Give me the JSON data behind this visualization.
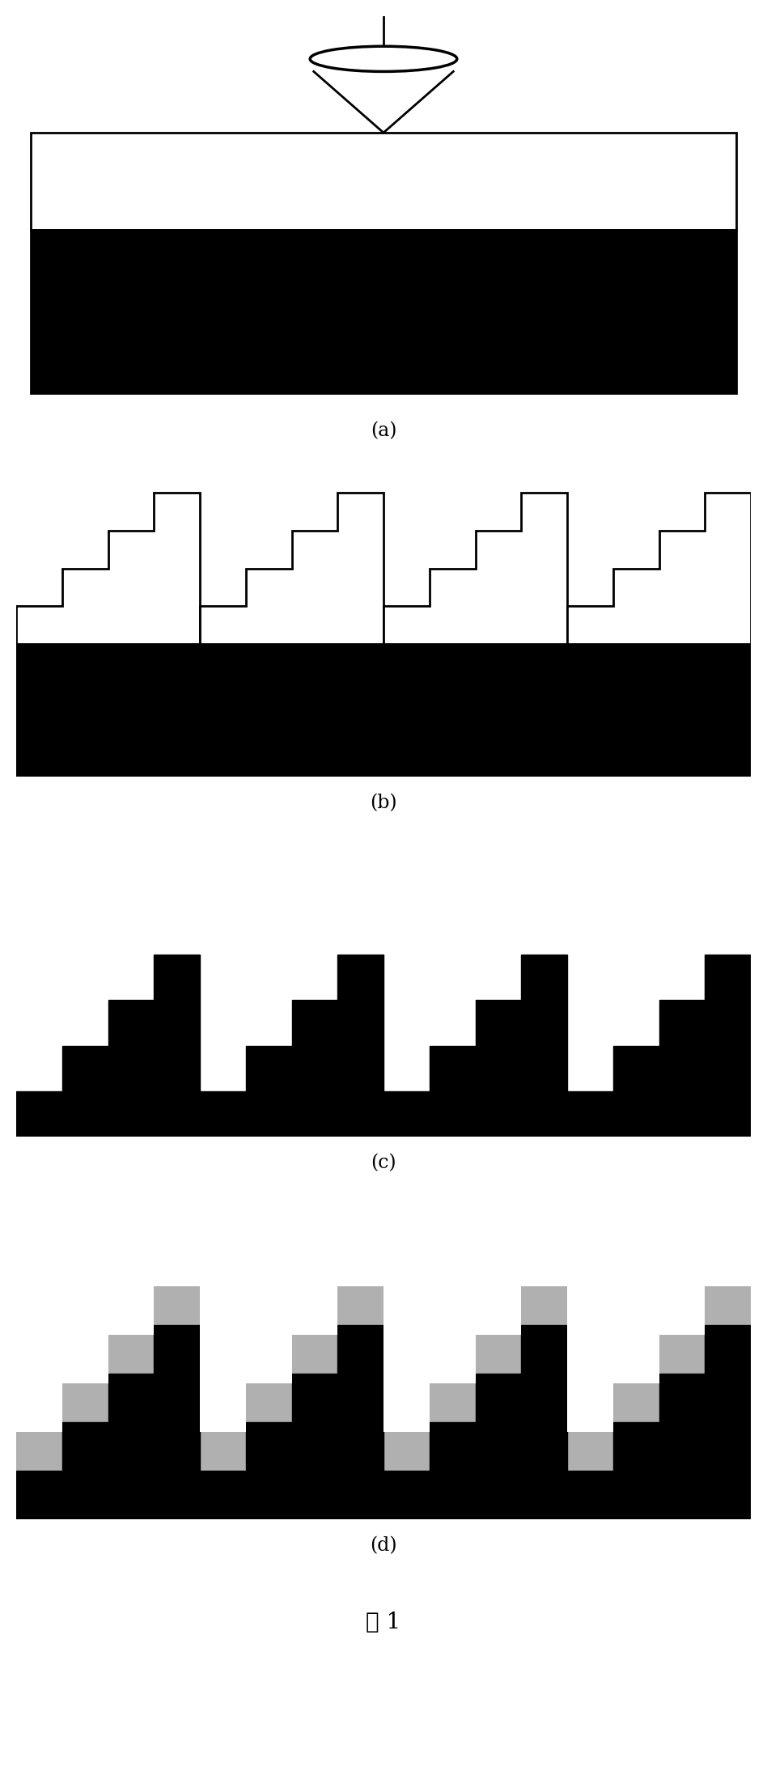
{
  "fig_width": 9.48,
  "fig_height": 21.83,
  "bg_color": "#ffffff",
  "black": "#000000",
  "white": "#ffffff",
  "gray": "#b0b0b0",
  "label_a": "(a)",
  "label_b": "(b)",
  "label_c": "(c)",
  "label_d": "(d)",
  "fig_label": "图 1",
  "panel_labels_fontsize": 17,
  "fig_label_fontsize": 20
}
